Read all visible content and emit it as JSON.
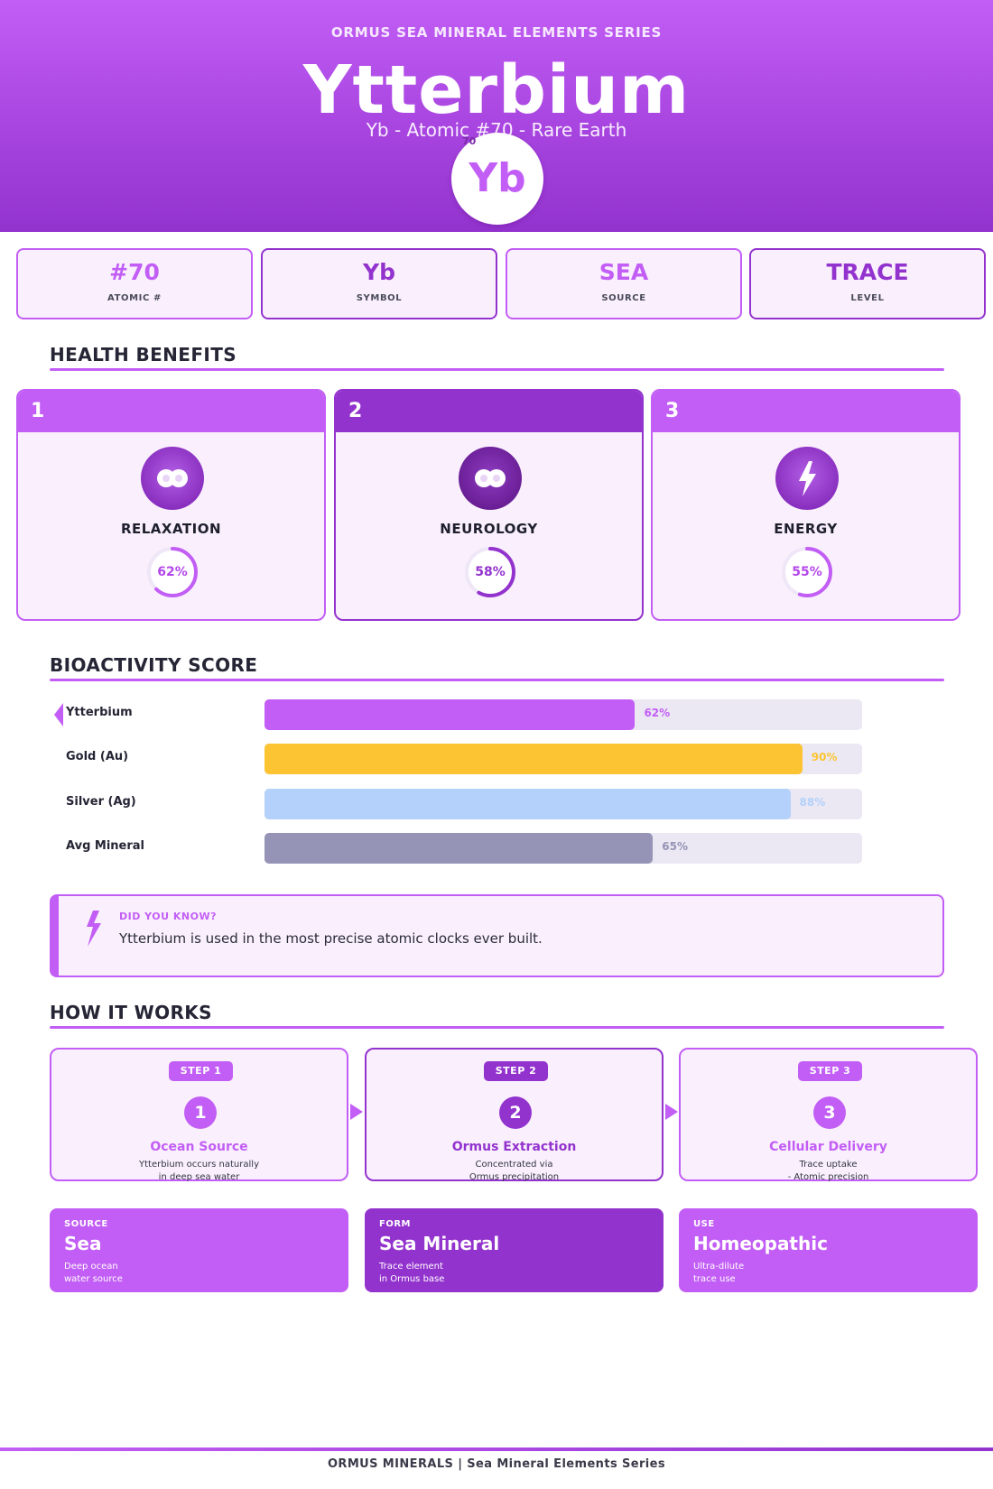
{
  "header": {
    "series": "ORMUS SEA MINERAL ELEMENTS SERIES",
    "name": "Ytterbium",
    "subtitle": "Yb  -  Atomic #70  -  Rare Earth",
    "symbol": "Yb",
    "atomic_number": "70"
  },
  "stats": [
    {
      "value": "#70",
      "label": "ATOMIC #"
    },
    {
      "value": "Yb",
      "label": "SYMBOL"
    },
    {
      "value": "SEA",
      "label": "SOURCE"
    },
    {
      "value": "TRACE",
      "label": "LEVEL"
    }
  ],
  "benefits": {
    "title": "HEALTH BENEFITS",
    "items": [
      {
        "number": "1",
        "title": "RELAXATION",
        "percent_label": "62%",
        "percent": 62,
        "icon": "infinity-icon"
      },
      {
        "number": "2",
        "title": "NEUROLOGY",
        "percent_label": "58%",
        "percent": 58,
        "icon": "infinity-icon"
      },
      {
        "number": "3",
        "title": "ENERGY",
        "percent_label": "55%",
        "percent": 55,
        "icon": "lightning-icon"
      }
    ]
  },
  "bioactivity": {
    "title": "BIOACTIVITY SCORE",
    "chart_data": {
      "type": "bar",
      "categories": [
        "Ytterbium",
        "Gold (Au)",
        "Silver (Ag)",
        "Avg Mineral"
      ],
      "values": [
        62,
        90,
        88,
        65
      ],
      "value_labels": [
        "62%",
        "90%",
        "88%",
        "65%"
      ],
      "colors": [
        "#c25ef5",
        "#fcc433",
        "#b3d1fb",
        "#9594b6"
      ],
      "ylim": [
        0,
        100
      ]
    }
  },
  "did_you_know": {
    "heading": "DID YOU KNOW?",
    "text": "Ytterbium is used in the most precise atomic clocks ever built."
  },
  "how_it_works": {
    "title": "HOW IT WORKS",
    "steps": [
      {
        "pill": "STEP 1",
        "number": "1",
        "title": "Ocean Source",
        "line1": "Ytterbium occurs naturally",
        "line2": "in deep sea water"
      },
      {
        "pill": "STEP 2",
        "number": "2",
        "title": "Ormus Extraction",
        "line1": "Concentrated via",
        "line2": "Ormus precipitation"
      },
      {
        "pill": "STEP 3",
        "number": "3",
        "title": "Cellular Delivery",
        "line1": "Trace uptake",
        "line2": "- Atomic precision"
      }
    ]
  },
  "tiles": [
    {
      "label": "SOURCE",
      "value": "Sea",
      "desc": "Deep ocean\nwater source"
    },
    {
      "label": "FORM",
      "value": "Sea Mineral",
      "desc": "Trace element\nin Ormus base"
    },
    {
      "label": "USE",
      "value": "Homeopathic",
      "desc": "Ultra-dilute\ntrace use"
    }
  ],
  "footer": "ORMUS MINERALS  |  Sea Mineral Elements Series",
  "colors": {
    "accent": "#c25ef5",
    "accent_dark": "#9333ce"
  }
}
